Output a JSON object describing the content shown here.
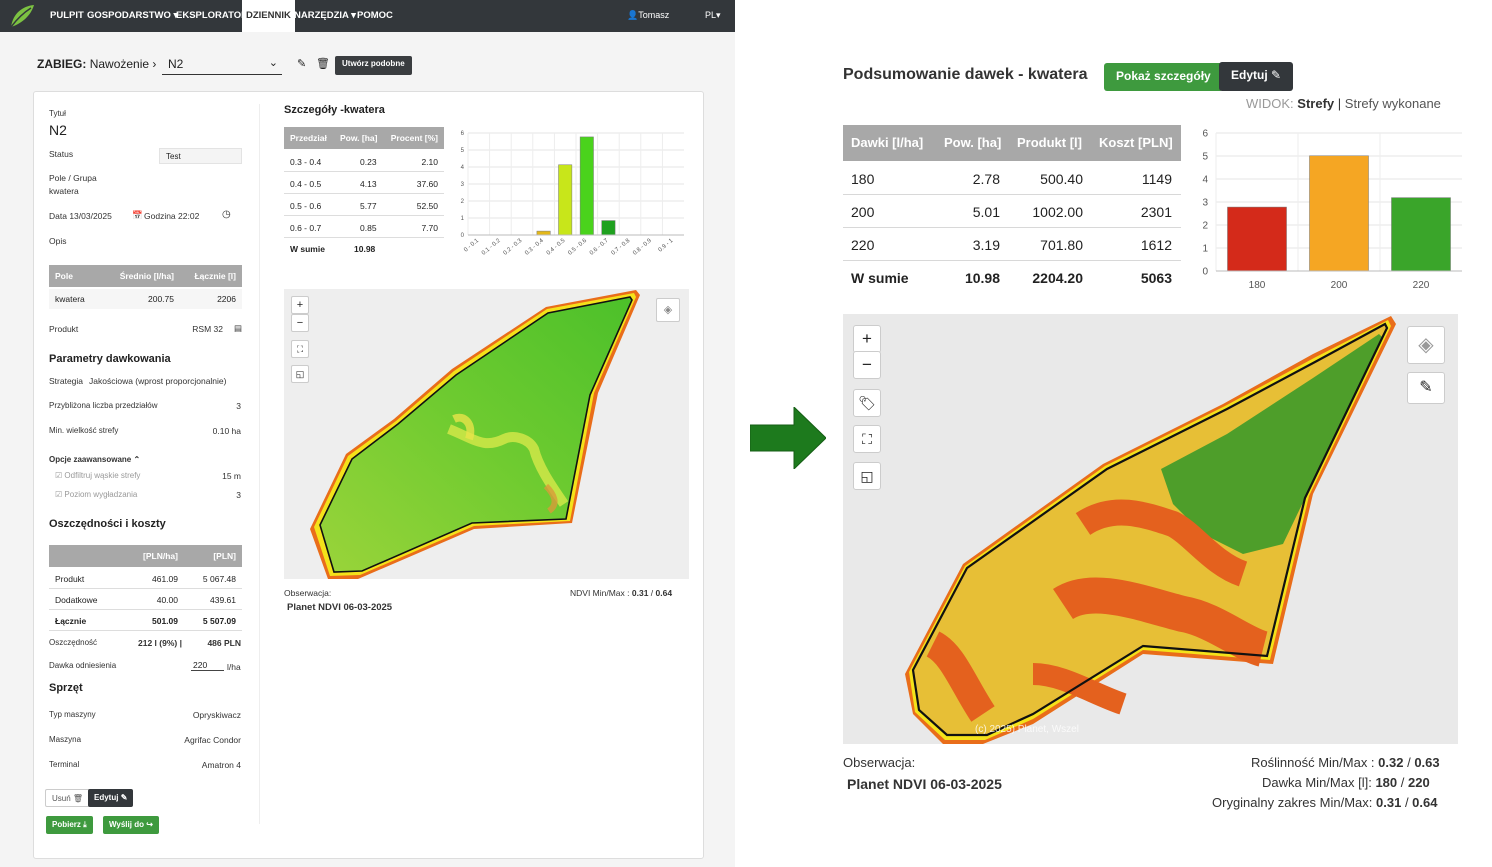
{
  "nav": {
    "items": [
      "PULPIT",
      "GOSPODARSTWO",
      "EKSPLORATOR",
      "DZIENNIK",
      "NARZĘDZIA",
      "POMOC"
    ],
    "active": "DZIENNIK",
    "user": "Tomasz",
    "lang": "PL"
  },
  "header": {
    "zabieg_label": "ZABIEG:",
    "zabieg_type": "Nawożenie",
    "selected": "N2",
    "utworz_label": "Utwórz podobne"
  },
  "form": {
    "tytul_label": "Tytuł",
    "tytul": "N2",
    "status_label": "Status",
    "status": "Test",
    "pole_label": "Pole / Grupa",
    "pole": "kwatera",
    "data": "Data 13/03/2025",
    "godzina": "Godzina 22:02",
    "opis_label": "Opis",
    "field_table": {
      "headers": [
        "Pole",
        "Średnio [l/ha]",
        "Łącznie [l]"
      ],
      "row": [
        "kwatera",
        "200.75",
        "2206"
      ]
    },
    "produkt_label": "Produkt",
    "produkt": "RSM 32",
    "params_heading": "Parametry dawkowania",
    "strategia_label": "Strategia",
    "strategia": "Jakościowa (wprost proporcjonalnie)",
    "przedzialy_label": "Przybliżona liczba przedziałów",
    "przedzialy": "3",
    "min_strefa_label": "Min. wielkość strefy",
    "min_strefa": "0.10 ha",
    "advanced_label": "Opcje zaawansowane",
    "filtruj_label": "Odfiltruj wąskie strefy",
    "filtruj_val": "15 m",
    "wygladzanie_label": "Poziom wygładzania",
    "wygladzanie_val": "3",
    "costs_heading": "Oszczędności i koszty",
    "cost_headers": [
      "[PLN/ha]",
      "[PLN]"
    ],
    "cost_rows": [
      [
        "Produkt",
        "461.09",
        "5 067.48"
      ],
      [
        "Dodatkowe",
        "40.00",
        "439.61"
      ],
      [
        "Łącznie",
        "501.09",
        "5 507.09"
      ]
    ],
    "oszczednosc_label": "Oszczędność",
    "oszczednosc_a": "212 l (9%)",
    "oszczednosc_b": "486 PLN",
    "dawka_label": "Dawka odniesienia",
    "dawka_val": "220",
    "dawka_unit": "l/ha",
    "sprzet_heading": "Sprzęt",
    "typ_label": "Typ maszyny",
    "typ_val": "Opryskiwacz",
    "maszyna_label": "Maszyna",
    "maszyna_val": "Agrifac Condor",
    "terminal_label": "Terminal",
    "terminal_val": "Amatron 4",
    "usun_label": "Usuń",
    "edytuj_label": "Edytuj",
    "pobierz_label": "Pobierz",
    "wyslij_label": "Wyślij do"
  },
  "details": {
    "heading": "Szczegóły -kwatera",
    "headers": [
      "Przedział",
      "Pow. [ha]",
      "Procent [%]"
    ],
    "rows": [
      [
        "0.3 - 0.4",
        "0.23",
        "2.10"
      ],
      [
        "0.4 - 0.5",
        "4.13",
        "37.60"
      ],
      [
        "0.5 - 0.6",
        "5.77",
        "52.50"
      ],
      [
        "0.6 - 0.7",
        "0.85",
        "7.70"
      ]
    ],
    "sum_label": "W sumie",
    "sum_val": "10.98",
    "obs_label": "Obserwacja:",
    "obs_val": "Planet NDVI 06-03-2025",
    "ndvi_label": "NDVI Min/Max :",
    "ndvi_min": "0.31",
    "ndvi_max": "0.64"
  },
  "right": {
    "title": "Podsumowanie dawek - kwatera",
    "pokaz_label": "Pokaż szczegóły",
    "edytuj_label": "Edytuj",
    "widok_label": "WIDOK:",
    "widok_active": "Strefy",
    "widok_other": "Strefy wykonane",
    "headers": [
      "Dawki [l/ha]",
      "Pow. [ha]",
      "Produkt [l]",
      "Koszt [PLN]"
    ],
    "rows": [
      [
        "180",
        "2.78",
        "500.40",
        "1149"
      ],
      [
        "200",
        "5.01",
        "1002.00",
        "2301"
      ],
      [
        "220",
        "3.19",
        "701.80",
        "1612"
      ]
    ],
    "sum": [
      "W sumie",
      "10.98",
      "2204.20",
      "5063"
    ],
    "obs_label": "Obserwacja:",
    "obs_val": "Planet NDVI 06-03-2025",
    "roslinnosc_label": "Roślinność Min/Max :",
    "roslinnosc_min": "0.32",
    "roslinnosc_max": "0.63",
    "dawka_label": "Dawka Min/Max [l]:",
    "dawka_min": "180",
    "dawka_max": "220",
    "zakres_label": "Oryginalny zakres Min/Max:",
    "zakres_min": "0.31",
    "zakres_max": "0.64",
    "attrib": "(c) 2025) Planet, Wszel"
  },
  "colors": {
    "dark": "#33373b",
    "green_btn": "#3e9a3e",
    "red": "#d42a1a",
    "orange": "#f5a623",
    "green": "#3aa52a"
  },
  "chart_data": [
    {
      "type": "bar",
      "categories": [
        "0 - 0.1",
        "0.1 - 0.2",
        "0.2 - 0.3",
        "0.3 - 0.4",
        "0.4 - 0.5",
        "0.5 - 0.6",
        "0.6 - 0.7",
        "0.7 - 0.8",
        "0.8 - 0.9",
        "0.9 - 1"
      ],
      "values": [
        0,
        0,
        0,
        0.23,
        4.13,
        5.77,
        0.85,
        0,
        0,
        0
      ],
      "ylim": [
        0,
        6
      ],
      "yticks": [
        0,
        1,
        2,
        3,
        4,
        5,
        6
      ],
      "colors": [
        "#8cd018",
        "#8cd018",
        "#8cd018",
        "#e4b818",
        "#c8e61a",
        "#4ad31c",
        "#1fa11f",
        "#1fa11f",
        "#1fa11f",
        "#1fa11f"
      ],
      "grid": true
    },
    {
      "type": "bar",
      "categories": [
        "180",
        "200",
        "220"
      ],
      "values": [
        2.78,
        5.01,
        3.19
      ],
      "ylim": [
        0,
        6
      ],
      "yticks": [
        0,
        1,
        2,
        3,
        4,
        5,
        6
      ],
      "colors": [
        "#d42a1a",
        "#f5a623",
        "#3aa52a"
      ],
      "grid": true
    }
  ]
}
